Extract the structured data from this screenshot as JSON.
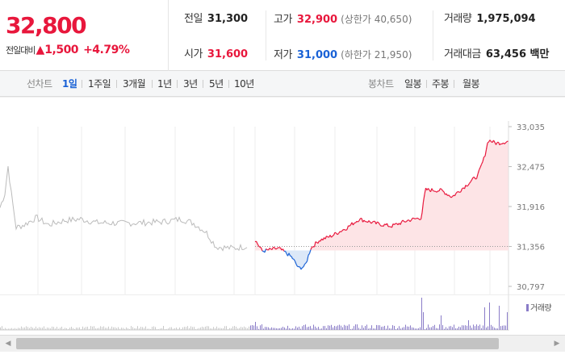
{
  "price": {
    "current": "32,800",
    "change_label": "전일대비",
    "change_symbol": "▲",
    "change_amount": "1,500",
    "change_rate": "+4.79%"
  },
  "stats": {
    "prev_close": {
      "label": "전일",
      "value": "31,300"
    },
    "high": {
      "label": "고가",
      "value": "32,900",
      "sub": "(상한가 40,650)"
    },
    "volume": {
      "label": "거래량",
      "value": "1,975,094"
    },
    "open": {
      "label": "시가",
      "value": "31,600"
    },
    "low": {
      "label": "저가",
      "value": "31,000",
      "sub": "(하한가 21,950)"
    },
    "trade_value": {
      "label": "거래대금",
      "value": "63,456 백만"
    }
  },
  "period_tabs": {
    "label": "선차트",
    "items": [
      "1일",
      "1주일",
      "3개월",
      "1년",
      "3년",
      "5년",
      "10년"
    ],
    "active": "1일"
  },
  "candle_tabs": {
    "label": "봉차트",
    "items": [
      "일봉",
      "주봉",
      "월봉"
    ]
  },
  "chart_data": {
    "type": "line",
    "y_ticks": [
      "33,035",
      "32,475",
      "31,916",
      "31,356",
      "30,797"
    ],
    "ylim": [
      30797,
      33035
    ],
    "baseline": 31300,
    "reference_line": 31356,
    "volume_legend": "거래량",
    "colors": {
      "up": "#e8173c",
      "down": "#1a62d6",
      "prior": "#bbbbbb",
      "volume": "#8a7cc8"
    }
  }
}
